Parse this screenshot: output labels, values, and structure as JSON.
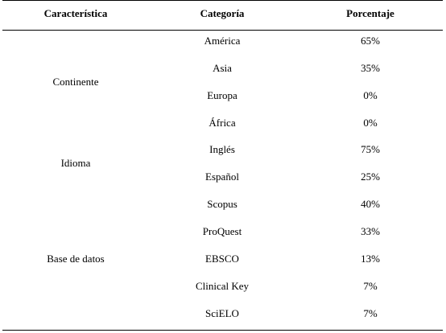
{
  "table": {
    "headers": [
      "Característica",
      "Categoría",
      "Porcentaje"
    ],
    "groups": [
      {
        "characteristic": "Continente",
        "rows": [
          {
            "category": "América",
            "percent": "65%"
          },
          {
            "category": "Asia",
            "percent": "35%"
          },
          {
            "category": "Europa",
            "percent": "0%"
          },
          {
            "category": "África",
            "percent": "0%"
          }
        ]
      },
      {
        "characteristic": "Idioma",
        "rows": [
          {
            "category": "Inglés",
            "percent": "75%"
          },
          {
            "category": "Español",
            "percent": "25%"
          }
        ]
      },
      {
        "characteristic": "Base de datos",
        "rows": [
          {
            "category": "Scopus",
            "percent": "40%"
          },
          {
            "category": "ProQuest",
            "percent": "33%"
          },
          {
            "category": "EBSCO",
            "percent": "13%"
          },
          {
            "category": "Clinical Key",
            "percent": "7%"
          },
          {
            "category": "SciELO",
            "percent": "7%"
          }
        ]
      }
    ]
  }
}
